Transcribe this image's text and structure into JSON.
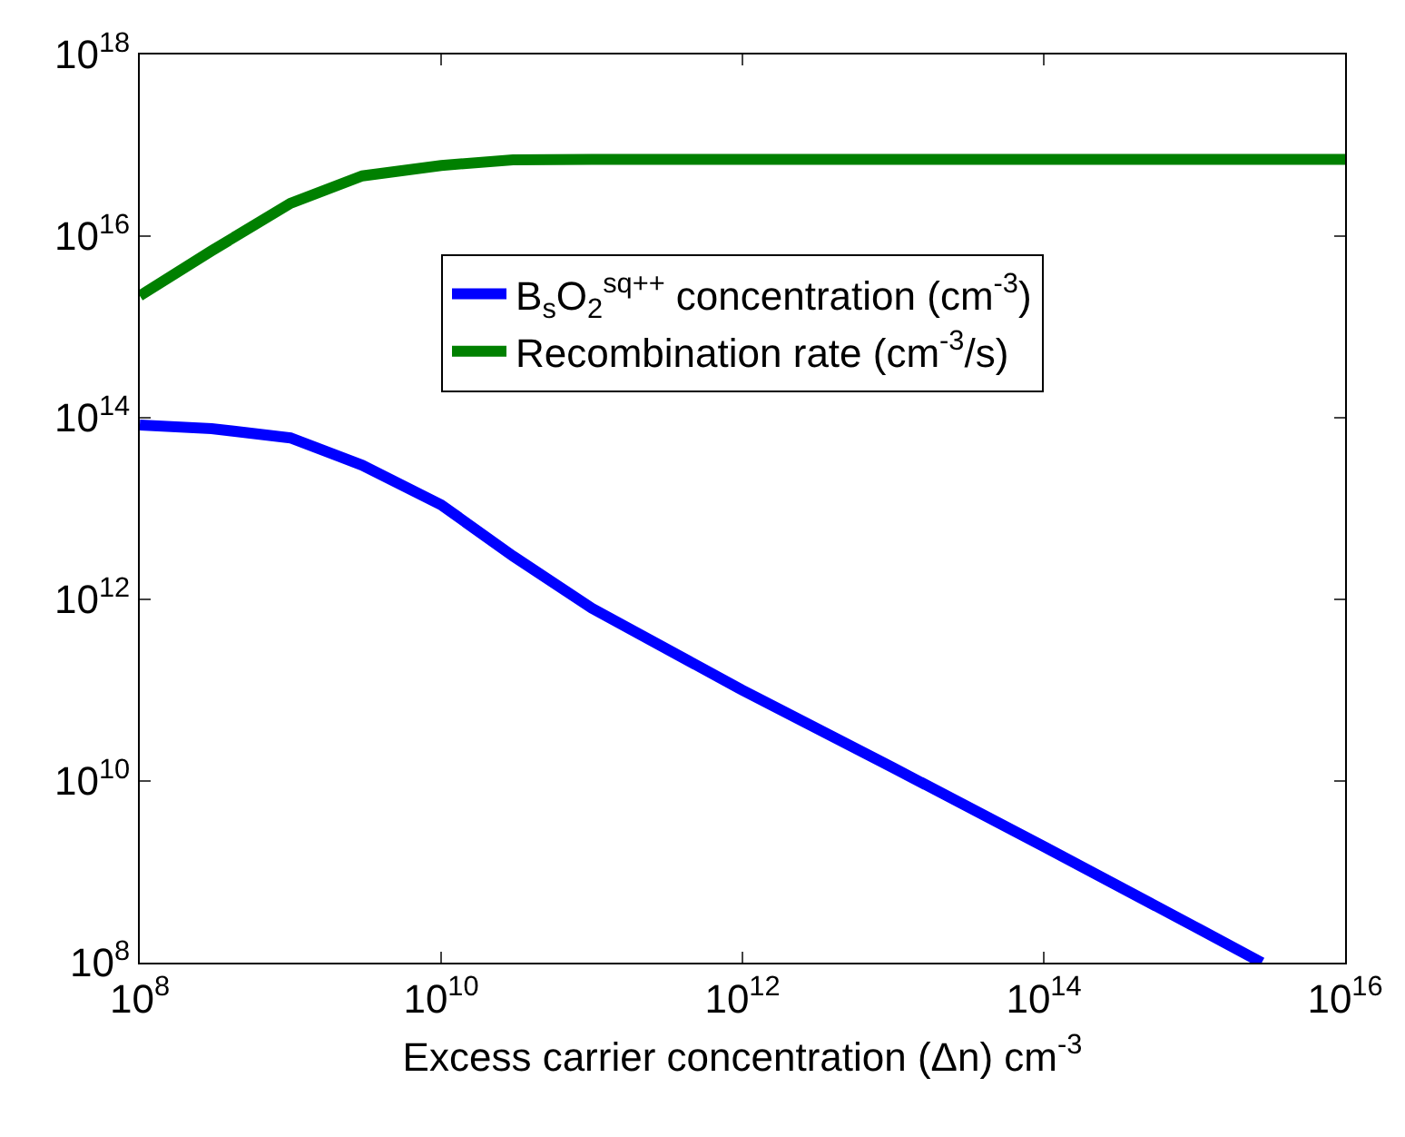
{
  "chart_data": {
    "type": "line",
    "xlabel": "Excess carrier concentration (Δn) cm$^{-3}$",
    "log": "xy",
    "grid": false,
    "legend": "top right",
    "marker": "none",
    "line_style": "solid",
    "xlim": [
      100000000.0,
      1e+16
    ],
    "ylim": [
      100000000.0,
      1e+18
    ],
    "xticks": [
      {
        "value": 100000000.0,
        "label": "10$^{8}$"
      },
      {
        "value": 10000000000.0,
        "label": "10$^{10}$"
      },
      {
        "value": 1000000000000.0,
        "label": "10$^{12}$"
      },
      {
        "value": 100000000000000.0,
        "label": "10$^{14}$"
      },
      {
        "value": 1e+16,
        "label": "10$^{16}$"
      }
    ],
    "yticks": [
      {
        "value": 100000000.0,
        "label": "10$^{8}$"
      },
      {
        "value": 10000000000.0,
        "label": "10$^{10}$"
      },
      {
        "value": 1000000000000.0,
        "label": "10$^{12}$"
      },
      {
        "value": 100000000000000.0,
        "label": "10$^{14}$"
      },
      {
        "value": 1e+16,
        "label": "10$^{16}$"
      },
      {
        "value": 1e+18,
        "label": "10$^{18}$"
      }
    ],
    "series": [
      {
        "name": "B$_{s}$O$_{2}$$^{sq++}$ concentration (cm$^{-3}$)",
        "color": "#0000ff",
        "x": [
          100000000.0,
          300000000.0,
          1000000000.0,
          3000000000.0,
          10000000000.0,
          30000000000.0,
          100000000000.0,
          1000000000000.0,
          10000000000000.0,
          100000000000000.0,
          1000000000000000.0,
          2800000000000000.0
        ],
        "values": [
          83000000000000.0,
          76000000000000.0,
          60000000000000.0,
          30000000000000.0,
          11000000000000.0,
          3000000000000.0,
          800000000000.0,
          100000000000.0,
          14000000000.0,
          1900000000.0,
          250000000.0,
          100000000.0
        ]
      },
      {
        "name": "Recombination rate (cm$^{-3}$/s)",
        "color": "#008000",
        "x": [
          100000000.0,
          300000000.0,
          1000000000.0,
          3000000000.0,
          10000000000.0,
          30000000000.0,
          100000000000.0,
          1000000000000.0,
          10000000000000.0,
          100000000000000.0,
          1000000000000000.0,
          1e+16
        ],
        "values": [
          2200000000000000.0,
          6900000000000000.0,
          2.3e+16,
          4.6e+16,
          6e+16,
          6.9e+16,
          7e+16,
          7e+16,
          7e+16,
          7e+16,
          7e+16,
          7e+16
        ]
      }
    ]
  }
}
